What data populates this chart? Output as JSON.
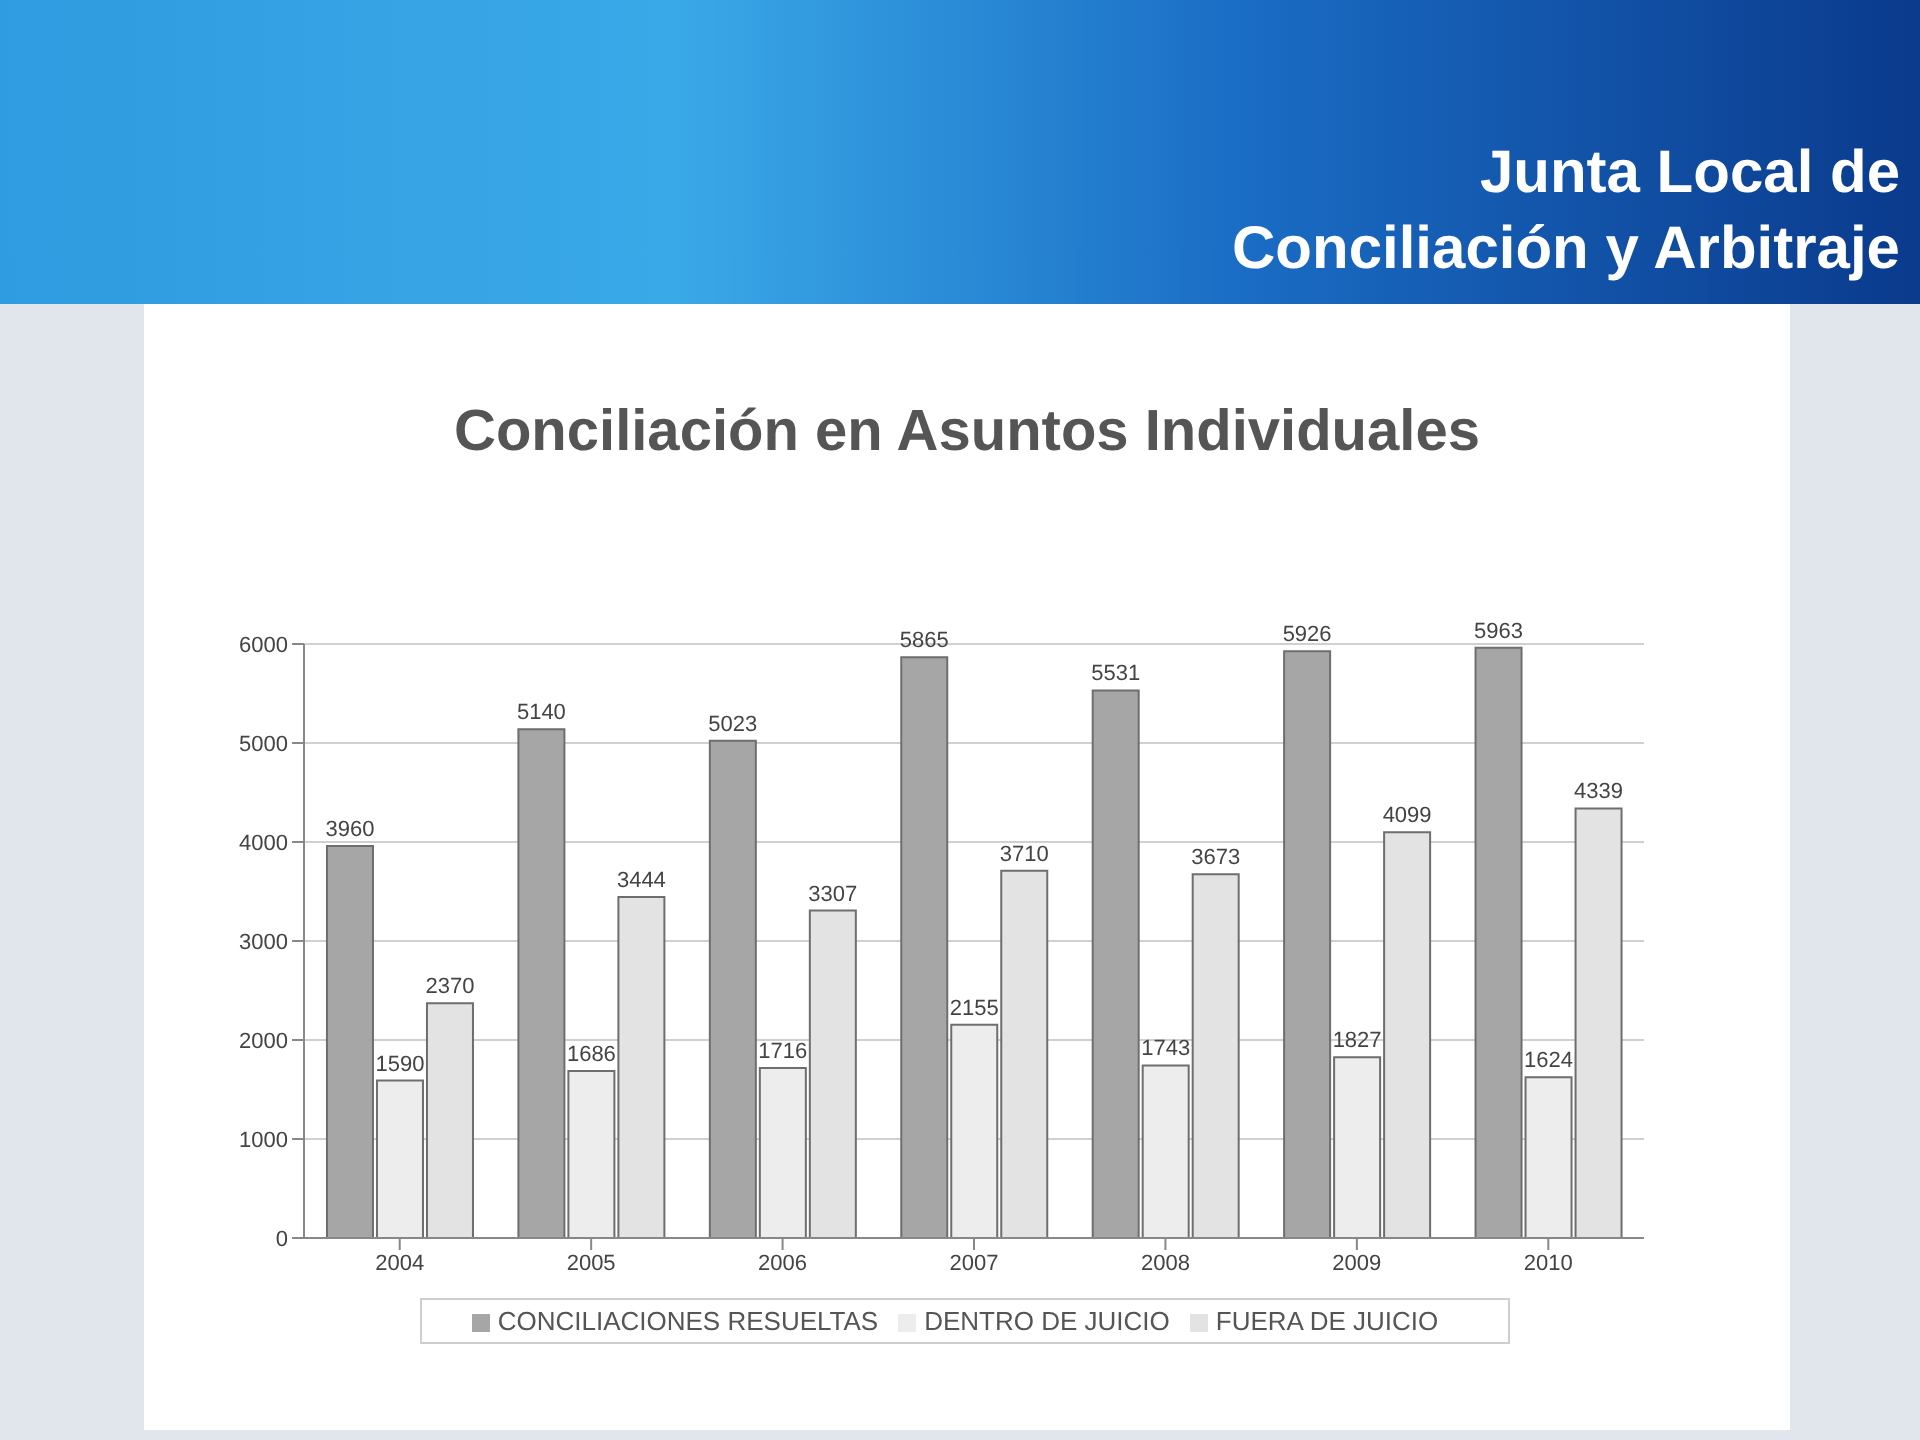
{
  "chart_data": {
    "type": "bar",
    "title": "Conciliación en Asuntos Individuales",
    "annotations": [
      "Junta Local de",
      "Conciliación y Arbitraje"
    ],
    "categories": [
      "2004",
      "2005",
      "2006",
      "2007",
      "2008",
      "2009",
      "2010"
    ],
    "series": [
      {
        "name": "CONCILIACIONES RESUELTAS",
        "color": "#a6a6a6",
        "values": [
          3960,
          5140,
          5023,
          5865,
          5531,
          5926,
          5963
        ]
      },
      {
        "name": "DENTRO DE JUICIO",
        "color": "#ededed",
        "values": [
          1590,
          1686,
          1716,
          2155,
          1743,
          1827,
          1624
        ]
      },
      {
        "name": "FUERA DE JUICIO",
        "color": "#e3e3e3",
        "values": [
          2370,
          3444,
          3307,
          3710,
          3673,
          4099,
          4339
        ]
      }
    ],
    "ylim": [
      0,
      6000
    ],
    "yticks": [
      0,
      1000,
      2000,
      3000,
      4000,
      5000,
      6000
    ],
    "grid": "y",
    "legend": "bottom",
    "data_labels": true
  }
}
